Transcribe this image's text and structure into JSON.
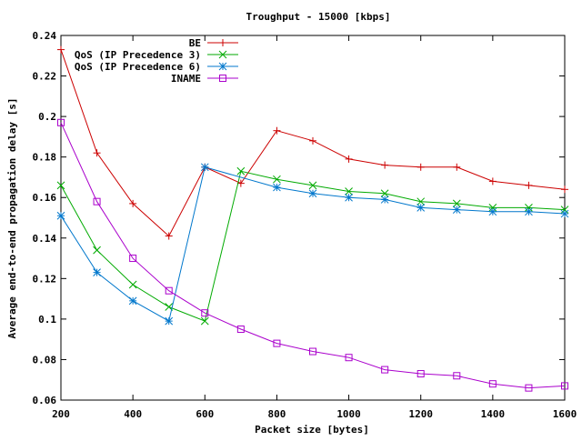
{
  "chart_data": {
    "type": "line",
    "title": "Troughput - 15000 [kbps]",
    "xlabel": "Packet size [bytes]",
    "ylabel": "Average end-to-end propagation delay [s]",
    "xlim": [
      200,
      1600
    ],
    "ylim": [
      0.06,
      0.24
    ],
    "xticks": [
      200,
      400,
      600,
      800,
      1000,
      1200,
      1400,
      1600
    ],
    "xtick_labels": [
      "200",
      "400",
      "600",
      "800",
      "1000",
      "1200",
      "1400",
      "1600"
    ],
    "yticks": [
      0.06,
      0.08,
      0.1,
      0.12,
      0.14,
      0.16,
      0.18,
      0.2,
      0.22,
      0.24
    ],
    "ytick_labels": [
      "0.06",
      "0.08",
      "0.1",
      "0.12",
      "0.14",
      "0.16",
      "0.18",
      "0.2",
      "0.22",
      "0.24"
    ],
    "grid": false,
    "legend_position": "top-right",
    "series": [
      {
        "name": "BE",
        "color": "#cc0000",
        "marker": "plus",
        "x": [
          200,
          300,
          400,
          500,
          600,
          700,
          800,
          900,
          1000,
          1100,
          1200,
          1300,
          1400,
          1500,
          1600
        ],
        "y": [
          0.233,
          0.182,
          0.157,
          0.141,
          0.175,
          0.167,
          0.193,
          0.188,
          0.179,
          0.176,
          0.175,
          0.175,
          0.168,
          0.166,
          0.164
        ]
      },
      {
        "name": "QoS (IP Precedence 3)",
        "color": "#00aa00",
        "marker": "cross",
        "x": [
          200,
          300,
          400,
          500,
          600,
          700,
          800,
          900,
          1000,
          1100,
          1200,
          1300,
          1400,
          1500,
          1600
        ],
        "y": [
          0.166,
          0.134,
          0.117,
          0.106,
          0.099,
          0.173,
          0.169,
          0.166,
          0.163,
          0.162,
          0.158,
          0.157,
          0.155,
          0.155,
          0.154
        ]
      },
      {
        "name": "QoS (IP Precedence 6)",
        "color": "#0077cc",
        "marker": "star",
        "x": [
          200,
          300,
          400,
          500,
          600,
          800,
          900,
          1000,
          1100,
          1200,
          1300,
          1400,
          1500,
          1600
        ],
        "y": [
          0.151,
          0.123,
          0.109,
          0.099,
          0.175,
          0.165,
          0.162,
          0.16,
          0.159,
          0.155,
          0.154,
          0.153,
          0.153,
          0.152
        ]
      },
      {
        "name": "INAME",
        "color": "#aa00cc",
        "marker": "square",
        "x": [
          200,
          300,
          400,
          500,
          600,
          700,
          800,
          900,
          1000,
          1100,
          1200,
          1300,
          1400,
          1500,
          1600
        ],
        "y": [
          0.197,
          0.158,
          0.13,
          0.114,
          0.103,
          0.095,
          0.088,
          0.084,
          0.081,
          0.075,
          0.073,
          0.072,
          0.068,
          0.066,
          0.067
        ]
      }
    ]
  }
}
